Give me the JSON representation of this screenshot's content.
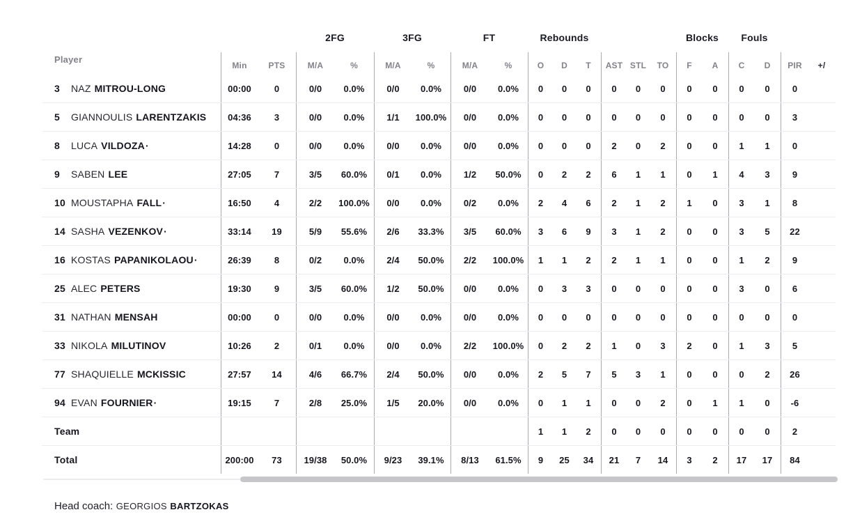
{
  "table": {
    "player_col_label": "Player",
    "group_headers": [
      "2FG",
      "3FG",
      "FT",
      "Rebounds",
      "Blocks",
      "Fouls"
    ],
    "sub_header_labels": [
      "Min",
      "PTS",
      "M/A",
      "%",
      "M/A",
      "%",
      "M/A",
      "%",
      "O",
      "D",
      "T",
      "AST",
      "STL",
      "TO",
      "F",
      "A",
      "C",
      "D",
      "PIR",
      "+/"
    ],
    "rows": [
      {
        "type": "player",
        "number": "3",
        "first": "NAZ",
        "last": "MITROU-LONG",
        "starter": false,
        "min": "00:00",
        "pts": "0",
        "fg2": "0/0",
        "fg2p": "0.0%",
        "fg3": "0/0",
        "fg3p": "0.0%",
        "ft": "0/0",
        "ftp": "0.0%",
        "reb_o": "0",
        "reb_d": "0",
        "reb_t": "0",
        "ast": "0",
        "stl": "0",
        "to": "0",
        "blk_f": "0",
        "blk_a": "0",
        "foul_c": "0",
        "foul_d": "0",
        "pir": "0",
        "pm": ""
      },
      {
        "type": "player",
        "number": "5",
        "first": "GIANNOULIS",
        "last": "LARENTZAKIS",
        "starter": false,
        "min": "04:36",
        "pts": "3",
        "fg2": "0/0",
        "fg2p": "0.0%",
        "fg3": "1/1",
        "fg3p": "100.0%",
        "ft": "0/0",
        "ftp": "0.0%",
        "reb_o": "0",
        "reb_d": "0",
        "reb_t": "0",
        "ast": "0",
        "stl": "0",
        "to": "0",
        "blk_f": "0",
        "blk_a": "0",
        "foul_c": "0",
        "foul_d": "0",
        "pir": "3",
        "pm": ""
      },
      {
        "type": "player",
        "number": "8",
        "first": "LUCA",
        "last": "VILDOZA",
        "starter": true,
        "min": "14:28",
        "pts": "0",
        "fg2": "0/0",
        "fg2p": "0.0%",
        "fg3": "0/0",
        "fg3p": "0.0%",
        "ft": "0/0",
        "ftp": "0.0%",
        "reb_o": "0",
        "reb_d": "0",
        "reb_t": "0",
        "ast": "2",
        "stl": "0",
        "to": "2",
        "blk_f": "0",
        "blk_a": "0",
        "foul_c": "1",
        "foul_d": "1",
        "pir": "0",
        "pm": ""
      },
      {
        "type": "player",
        "number": "9",
        "first": "SABEN",
        "last": "LEE",
        "starter": false,
        "min": "27:05",
        "pts": "7",
        "fg2": "3/5",
        "fg2p": "60.0%",
        "fg3": "0/1",
        "fg3p": "0.0%",
        "ft": "1/2",
        "ftp": "50.0%",
        "reb_o": "0",
        "reb_d": "2",
        "reb_t": "2",
        "ast": "6",
        "stl": "1",
        "to": "1",
        "blk_f": "0",
        "blk_a": "1",
        "foul_c": "4",
        "foul_d": "3",
        "pir": "9",
        "pm": ""
      },
      {
        "type": "player",
        "number": "10",
        "first": "MOUSTAPHA",
        "last": "FALL",
        "starter": true,
        "min": "16:50",
        "pts": "4",
        "fg2": "2/2",
        "fg2p": "100.0%",
        "fg3": "0/0",
        "fg3p": "0.0%",
        "ft": "0/2",
        "ftp": "0.0%",
        "reb_o": "2",
        "reb_d": "4",
        "reb_t": "6",
        "ast": "2",
        "stl": "1",
        "to": "2",
        "blk_f": "1",
        "blk_a": "0",
        "foul_c": "3",
        "foul_d": "1",
        "pir": "8",
        "pm": ""
      },
      {
        "type": "player",
        "number": "14",
        "first": "SASHA",
        "last": "VEZENKOV",
        "starter": true,
        "min": "33:14",
        "pts": "19",
        "fg2": "5/9",
        "fg2p": "55.6%",
        "fg3": "2/6",
        "fg3p": "33.3%",
        "ft": "3/5",
        "ftp": "60.0%",
        "reb_o": "3",
        "reb_d": "6",
        "reb_t": "9",
        "ast": "3",
        "stl": "1",
        "to": "2",
        "blk_f": "0",
        "blk_a": "0",
        "foul_c": "3",
        "foul_d": "5",
        "pir": "22",
        "pm": ""
      },
      {
        "type": "player",
        "number": "16",
        "first": "KOSTAS",
        "last": "PAPANIKOLAOU",
        "starter": true,
        "min": "26:39",
        "pts": "8",
        "fg2": "0/2",
        "fg2p": "0.0%",
        "fg3": "2/4",
        "fg3p": "50.0%",
        "ft": "2/2",
        "ftp": "100.0%",
        "reb_o": "1",
        "reb_d": "1",
        "reb_t": "2",
        "ast": "2",
        "stl": "1",
        "to": "1",
        "blk_f": "0",
        "blk_a": "0",
        "foul_c": "1",
        "foul_d": "2",
        "pir": "9",
        "pm": ""
      },
      {
        "type": "player",
        "number": "25",
        "first": "ALEC",
        "last": "PETERS",
        "starter": false,
        "min": "19:30",
        "pts": "9",
        "fg2": "3/5",
        "fg2p": "60.0%",
        "fg3": "1/2",
        "fg3p": "50.0%",
        "ft": "0/0",
        "ftp": "0.0%",
        "reb_o": "0",
        "reb_d": "3",
        "reb_t": "3",
        "ast": "0",
        "stl": "0",
        "to": "0",
        "blk_f": "0",
        "blk_a": "0",
        "foul_c": "3",
        "foul_d": "0",
        "pir": "6",
        "pm": ""
      },
      {
        "type": "player",
        "number": "31",
        "first": "NATHAN",
        "last": "MENSAH",
        "starter": false,
        "min": "00:00",
        "pts": "0",
        "fg2": "0/0",
        "fg2p": "0.0%",
        "fg3": "0/0",
        "fg3p": "0.0%",
        "ft": "0/0",
        "ftp": "0.0%",
        "reb_o": "0",
        "reb_d": "0",
        "reb_t": "0",
        "ast": "0",
        "stl": "0",
        "to": "0",
        "blk_f": "0",
        "blk_a": "0",
        "foul_c": "0",
        "foul_d": "0",
        "pir": "0",
        "pm": ""
      },
      {
        "type": "player",
        "number": "33",
        "first": "NIKOLA",
        "last": "MILUTINOV",
        "starter": false,
        "min": "10:26",
        "pts": "2",
        "fg2": "0/1",
        "fg2p": "0.0%",
        "fg3": "0/0",
        "fg3p": "0.0%",
        "ft": "2/2",
        "ftp": "100.0%",
        "reb_o": "0",
        "reb_d": "2",
        "reb_t": "2",
        "ast": "1",
        "stl": "0",
        "to": "3",
        "blk_f": "2",
        "blk_a": "0",
        "foul_c": "1",
        "foul_d": "3",
        "pir": "5",
        "pm": ""
      },
      {
        "type": "player",
        "number": "77",
        "first": "SHAQUIELLE",
        "last": "MCKISSIC",
        "starter": false,
        "min": "27:57",
        "pts": "14",
        "fg2": "4/6",
        "fg2p": "66.7%",
        "fg3": "2/4",
        "fg3p": "50.0%",
        "ft": "0/0",
        "ftp": "0.0%",
        "reb_o": "2",
        "reb_d": "5",
        "reb_t": "7",
        "ast": "5",
        "stl": "3",
        "to": "1",
        "blk_f": "0",
        "blk_a": "0",
        "foul_c": "0",
        "foul_d": "2",
        "pir": "26",
        "pm": ""
      },
      {
        "type": "player",
        "number": "94",
        "first": "EVAN",
        "last": "FOURNIER",
        "starter": true,
        "min": "19:15",
        "pts": "7",
        "fg2": "2/8",
        "fg2p": "25.0%",
        "fg3": "1/5",
        "fg3p": "20.0%",
        "ft": "0/0",
        "ftp": "0.0%",
        "reb_o": "0",
        "reb_d": "1",
        "reb_t": "1",
        "ast": "0",
        "stl": "0",
        "to": "2",
        "blk_f": "0",
        "blk_a": "1",
        "foul_c": "1",
        "foul_d": "0",
        "pir": "-6",
        "pm": ""
      },
      {
        "type": "team",
        "label": "Team",
        "min": "",
        "pts": "",
        "fg2": "",
        "fg2p": "",
        "fg3": "",
        "fg3p": "",
        "ft": "",
        "ftp": "",
        "reb_o": "1",
        "reb_d": "1",
        "reb_t": "2",
        "ast": "0",
        "stl": "0",
        "to": "0",
        "blk_f": "0",
        "blk_a": "0",
        "foul_c": "0",
        "foul_d": "0",
        "pir": "2",
        "pm": ""
      },
      {
        "type": "total",
        "label": "Total",
        "min": "200:00",
        "pts": "73",
        "fg2": "19/38",
        "fg2p": "50.0%",
        "fg3": "9/23",
        "fg3p": "39.1%",
        "ft": "8/13",
        "ftp": "61.5%",
        "reb_o": "9",
        "reb_d": "25",
        "reb_t": "34",
        "ast": "21",
        "stl": "7",
        "to": "14",
        "blk_f": "3",
        "blk_a": "2",
        "foul_c": "17",
        "foul_d": "17",
        "pir": "84",
        "pm": ""
      }
    ]
  },
  "footer": {
    "label": "Head coach:",
    "coach_first": "GEORGIOS",
    "coach_last": "BARTZOKAS"
  },
  "colors": {
    "text_dark": "#17171f",
    "text_gray": "#82828b",
    "divider": "#a9a9af",
    "row_line": "#ededf0",
    "scrollbar_thumb": "#c7c7c9"
  }
}
